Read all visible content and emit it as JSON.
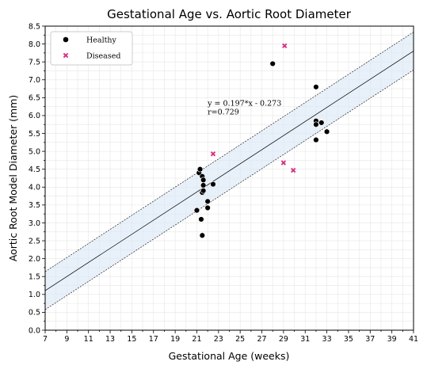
{
  "chart_data": {
    "type": "scatter",
    "title": "Gestational Age vs. Aortic Root Diameter",
    "xlabel": "Gestational Age (weeks)",
    "ylabel": "Aortic Root Model Diameter (mm)",
    "xlim": [
      7,
      41
    ],
    "ylim": [
      0,
      8.5
    ],
    "xticks": [
      "7",
      "9",
      "11",
      "13",
      "15",
      "17",
      "19",
      "21",
      "23",
      "25",
      "27",
      "29",
      "31",
      "33",
      "35",
      "37",
      "39",
      "41"
    ],
    "yticks": [
      "0.0",
      "0.5",
      "1.0",
      "1.5",
      "2.0",
      "2.5",
      "3.0",
      "3.5",
      "4.0",
      "4.5",
      "5.0",
      "5.5",
      "6.0",
      "6.5",
      "7.0",
      "7.5",
      "8.0",
      "8.5"
    ],
    "grid": true,
    "legend_position": "top-left",
    "series": [
      {
        "name": "Healthy",
        "marker": "circle",
        "color": "#000000",
        "points": [
          {
            "x": 21.0,
            "y": 3.35
          },
          {
            "x": 21.2,
            "y": 4.4
          },
          {
            "x": 21.3,
            "y": 4.5
          },
          {
            "x": 21.4,
            "y": 3.1
          },
          {
            "x": 21.5,
            "y": 4.3
          },
          {
            "x": 21.6,
            "y": 4.2
          },
          {
            "x": 21.5,
            "y": 3.85
          },
          {
            "x": 21.6,
            "y": 3.9
          },
          {
            "x": 21.6,
            "y": 4.05
          },
          {
            "x": 21.5,
            "y": 2.65
          },
          {
            "x": 22.0,
            "y": 3.6
          },
          {
            "x": 22.0,
            "y": 3.42
          },
          {
            "x": 22.5,
            "y": 4.08
          },
          {
            "x": 28.0,
            "y": 7.45
          },
          {
            "x": 32.0,
            "y": 6.8
          },
          {
            "x": 32.0,
            "y": 5.85
          },
          {
            "x": 32.0,
            "y": 5.75
          },
          {
            "x": 32.5,
            "y": 5.8
          },
          {
            "x": 32.0,
            "y": 5.32
          },
          {
            "x": 33.0,
            "y": 5.55
          }
        ]
      },
      {
        "name": "Diseased",
        "marker": "x",
        "color": "#d62f83",
        "points": [
          {
            "x": 22.5,
            "y": 4.93
          },
          {
            "x": 29.1,
            "y": 7.95
          },
          {
            "x": 29.0,
            "y": 4.68
          },
          {
            "x": 29.9,
            "y": 4.47
          }
        ]
      }
    ],
    "fit": {
      "slope": 0.197,
      "intercept": -0.273,
      "band": 0.53,
      "band_color": "#d8e6f5"
    },
    "annotation": {
      "line1": "y = 0.197*x - 0.273",
      "line2": "r=0.729",
      "x": 22.0,
      "y": 6.28
    }
  }
}
